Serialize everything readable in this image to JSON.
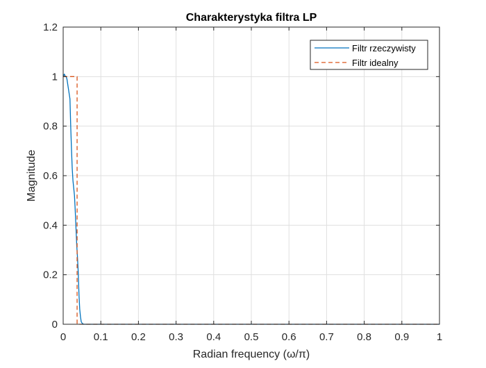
{
  "chart_data": {
    "type": "line",
    "title": "Charakterystyka filtra LP",
    "xlabel": "Radian frequency (ω/π)",
    "ylabel": "Magnitude",
    "xlim": [
      0,
      1
    ],
    "ylim": [
      0,
      1.2
    ],
    "xticks": [
      0,
      0.1,
      0.2,
      0.3,
      0.4,
      0.5,
      0.6,
      0.7,
      0.8,
      0.9,
      1
    ],
    "xtick_labels": [
      "0",
      "0.1",
      "0.2",
      "0.3",
      "0.4",
      "0.5",
      "0.6",
      "0.7",
      "0.8",
      "0.9",
      "1"
    ],
    "yticks": [
      0,
      0.2,
      0.4,
      0.6,
      0.8,
      1,
      1.2
    ],
    "ytick_labels": [
      "0",
      "0.2",
      "0.4",
      "0.6",
      "0.8",
      "1",
      "1.2"
    ],
    "grid": true,
    "legend_position": "top-right",
    "series": [
      {
        "name": "Filtr rzeczywisty",
        "color": "#0072bd",
        "style": "solid",
        "x": [
          0,
          0.003,
          0.006,
          0.008,
          0.01,
          0.012,
          0.014,
          0.016,
          0.018,
          0.02,
          0.022,
          0.024,
          0.026,
          0.028,
          0.03,
          0.032,
          0.034,
          0.036,
          0.038,
          0.04,
          0.042,
          0.044,
          0.046,
          0.048,
          0.05,
          0.052,
          0.055,
          0.06,
          0.1,
          0.2,
          0.4,
          0.6,
          0.8,
          1
        ],
        "y": [
          1.0,
          1.01,
          1.0,
          1.0,
          0.99,
          0.97,
          0.95,
          0.93,
          0.91,
          0.8,
          0.71,
          0.63,
          0.58,
          0.55,
          0.52,
          0.46,
          0.39,
          0.32,
          0.27,
          0.21,
          0.12,
          0.06,
          0.03,
          0.01,
          0.005,
          0.002,
          0,
          0,
          0,
          0,
          0,
          0,
          0,
          0
        ]
      },
      {
        "name": "Filtr idealny",
        "color": "#d95319",
        "style": "dashed",
        "x": [
          0,
          0.025,
          0.025,
          0.037,
          0.037,
          1
        ],
        "y": [
          1,
          1,
          1,
          1,
          0,
          0
        ]
      }
    ]
  }
}
